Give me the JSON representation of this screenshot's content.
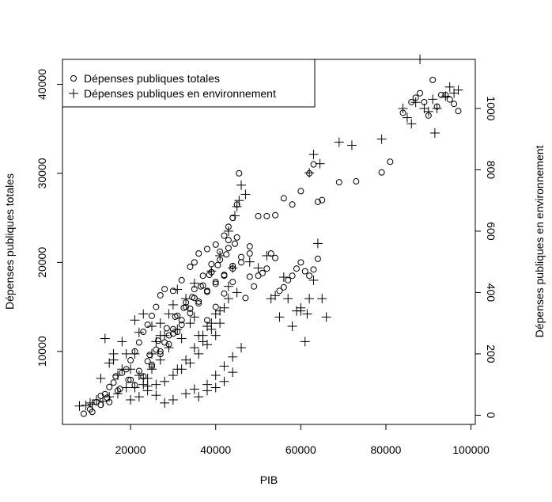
{
  "chart_data": {
    "type": "scatter",
    "title": "",
    "xlabel": "PIB",
    "ylabel": "Dépenses publiques totales",
    "y2label": "Dépenses publiques en environnement",
    "xlim": [
      4000,
      101000
    ],
    "ylim": [
      1800,
      42800
    ],
    "y2lim": [
      -30,
      1160
    ],
    "x_ticks": [
      20000,
      40000,
      60000,
      80000,
      100000
    ],
    "y_ticks": [
      10000,
      20000,
      30000,
      40000
    ],
    "y2_ticks": [
      0,
      200,
      400,
      600,
      800,
      1000
    ],
    "legend": {
      "position": "top-left",
      "entries": [
        {
          "label": "Dépenses publiques totales",
          "marker": "circle"
        },
        {
          "label": "Dépenses publiques en environnement",
          "marker": "plus"
        }
      ]
    },
    "series": [
      {
        "name": "Dépenses publiques totales",
        "marker": "circle",
        "axis": "left",
        "points": [
          [
            9000,
            3000
          ],
          [
            10500,
            3500
          ],
          [
            12000,
            4300
          ],
          [
            13000,
            5000
          ],
          [
            14000,
            5200
          ],
          [
            15000,
            6000
          ],
          [
            16000,
            6500
          ],
          [
            16500,
            7200
          ],
          [
            18000,
            7600
          ],
          [
            19000,
            8000
          ],
          [
            20000,
            9000
          ],
          [
            21000,
            10000
          ],
          [
            22000,
            11000
          ],
          [
            23000,
            12200
          ],
          [
            24000,
            13000
          ],
          [
            25000,
            14000
          ],
          [
            26000,
            15000
          ],
          [
            27000,
            16300
          ],
          [
            28000,
            17000
          ],
          [
            30000,
            16800
          ],
          [
            32000,
            18000
          ],
          [
            34000,
            19500
          ],
          [
            35000,
            20000
          ],
          [
            36000,
            21000
          ],
          [
            38000,
            21500
          ],
          [
            40000,
            22000
          ],
          [
            42000,
            23000
          ],
          [
            43000,
            24000
          ],
          [
            44000,
            25000
          ],
          [
            45000,
            26500
          ],
          [
            45500,
            30000
          ],
          [
            15000,
            4300
          ],
          [
            17000,
            5600
          ],
          [
            20000,
            6800
          ],
          [
            22000,
            7800
          ],
          [
            24000,
            8900
          ],
          [
            26000,
            10200
          ],
          [
            28000,
            11000
          ],
          [
            30000,
            12500
          ],
          [
            32000,
            13500
          ],
          [
            34000,
            14800
          ],
          [
            36000,
            15600
          ],
          [
            38000,
            16800
          ],
          [
            40000,
            17800
          ],
          [
            42000,
            18600
          ],
          [
            44000,
            19300
          ],
          [
            46000,
            20000
          ],
          [
            48000,
            21000
          ],
          [
            25000,
            8500
          ],
          [
            27000,
            10000
          ],
          [
            29000,
            11800
          ],
          [
            31000,
            14000
          ],
          [
            33000,
            15500
          ],
          [
            35000,
            17000
          ],
          [
            37000,
            18500
          ],
          [
            39000,
            19800
          ],
          [
            41000,
            21200
          ],
          [
            43000,
            22500
          ],
          [
            30000,
            12000
          ],
          [
            32000,
            13000
          ],
          [
            34000,
            14300
          ],
          [
            36000,
            15400
          ],
          [
            38000,
            16700
          ],
          [
            40000,
            17600
          ],
          [
            42000,
            18500
          ],
          [
            44000,
            19600
          ],
          [
            46000,
            20600
          ],
          [
            48000,
            21800
          ],
          [
            50000,
            25200
          ],
          [
            52000,
            25200
          ],
          [
            54000,
            25300
          ],
          [
            56000,
            27200
          ],
          [
            58000,
            26500
          ],
          [
            60000,
            28000
          ],
          [
            62000,
            30000
          ],
          [
            63000,
            31000
          ],
          [
            64000,
            26800
          ],
          [
            65000,
            27000
          ],
          [
            55000,
            16800
          ],
          [
            56000,
            17200
          ],
          [
            57000,
            18000
          ],
          [
            58000,
            18500
          ],
          [
            59000,
            19300
          ],
          [
            60000,
            20000
          ],
          [
            61000,
            19000
          ],
          [
            62000,
            18500
          ],
          [
            63000,
            19200
          ],
          [
            64000,
            20400
          ],
          [
            48000,
            18400
          ],
          [
            50000,
            18500
          ],
          [
            52000,
            19300
          ],
          [
            53000,
            21000
          ],
          [
            54000,
            20500
          ],
          [
            47000,
            16000
          ],
          [
            49000,
            17300
          ],
          [
            51000,
            18800
          ],
          [
            69000,
            29000
          ],
          [
            73000,
            29100
          ],
          [
            79000,
            30100
          ],
          [
            81000,
            31300
          ],
          [
            84000,
            36800
          ],
          [
            86000,
            38000
          ],
          [
            87000,
            38500
          ],
          [
            88000,
            39000
          ],
          [
            89000,
            38000
          ],
          [
            90000,
            36500
          ],
          [
            91000,
            40500
          ],
          [
            92000,
            37500
          ],
          [
            93000,
            38800
          ],
          [
            94000,
            38800
          ],
          [
            95000,
            38300
          ],
          [
            96000,
            37800
          ],
          [
            97000,
            37000
          ],
          [
            33000,
            15000
          ],
          [
            35000,
            16000
          ],
          [
            37000,
            17400
          ],
          [
            39000,
            18900
          ],
          [
            41000,
            20300
          ],
          [
            43000,
            21600
          ],
          [
            45000,
            22800
          ],
          [
            38000,
            13500
          ],
          [
            40000,
            15000
          ],
          [
            42000,
            16500
          ],
          [
            44000,
            17800
          ],
          [
            21000,
            6200
          ],
          [
            23000,
            7200
          ],
          [
            25000,
            8300
          ],
          [
            27000,
            9700
          ],
          [
            29000,
            10800
          ],
          [
            31000,
            12200
          ],
          [
            11000,
            3200
          ],
          [
            13000,
            4000
          ],
          [
            14500,
            4800
          ],
          [
            17500,
            5800
          ],
          [
            19500,
            6800
          ],
          [
            24500,
            9600
          ],
          [
            26500,
            11200
          ],
          [
            28500,
            12600
          ],
          [
            30500,
            13900
          ],
          [
            32500,
            14900
          ],
          [
            34500,
            16100
          ],
          [
            36500,
            17300
          ],
          [
            38500,
            18600
          ],
          [
            40500,
            19700
          ],
          [
            42500,
            20900
          ],
          [
            44500,
            22100
          ]
        ]
      },
      {
        "name": "Dépenses publiques en environnement",
        "marker": "plus",
        "axis": "right",
        "points": [
          [
            8000,
            30
          ],
          [
            9500,
            32
          ],
          [
            10500,
            40
          ],
          [
            12000,
            50
          ],
          [
            13000,
            120
          ],
          [
            14000,
            250
          ],
          [
            15000,
            170
          ],
          [
            16000,
            200
          ],
          [
            17000,
            130
          ],
          [
            18000,
            150
          ],
          [
            19000,
            200
          ],
          [
            20000,
            150
          ],
          [
            21000,
            200
          ],
          [
            22000,
            270
          ],
          [
            23000,
            100
          ],
          [
            24000,
            120
          ],
          [
            25000,
            200
          ],
          [
            26000,
            240
          ],
          [
            27000,
            300
          ],
          [
            28000,
            260
          ],
          [
            29000,
            330
          ],
          [
            30000,
            360
          ],
          [
            31000,
            280
          ],
          [
            32000,
            250
          ],
          [
            33000,
            380
          ],
          [
            34000,
            300
          ],
          [
            35000,
            320
          ],
          [
            36000,
            260
          ],
          [
            37000,
            240
          ],
          [
            38000,
            290
          ],
          [
            39000,
            280
          ],
          [
            40000,
            330
          ],
          [
            41000,
            300
          ],
          [
            42000,
            350
          ],
          [
            43000,
            420
          ],
          [
            44000,
            480
          ],
          [
            45000,
            680
          ],
          [
            46000,
            750
          ],
          [
            47000,
            720
          ],
          [
            48000,
            500
          ],
          [
            50000,
            480
          ],
          [
            52000,
            520
          ],
          [
            53000,
            380
          ],
          [
            54000,
            390
          ],
          [
            55000,
            320
          ],
          [
            56000,
            450
          ],
          [
            57000,
            380
          ],
          [
            58000,
            290
          ],
          [
            59000,
            340
          ],
          [
            60000,
            350
          ],
          [
            61000,
            240
          ],
          [
            62000,
            380
          ],
          [
            63000,
            440
          ],
          [
            64000,
            560
          ],
          [
            65000,
            380
          ],
          [
            66000,
            320
          ],
          [
            69000,
            890
          ],
          [
            72000,
            880
          ],
          [
            79000,
            900
          ],
          [
            84000,
            1000
          ],
          [
            86000,
            950
          ],
          [
            87000,
            1020
          ],
          [
            88000,
            1160
          ],
          [
            89000,
            1000
          ],
          [
            90000,
            990
          ],
          [
            91000,
            1030
          ],
          [
            92000,
            1000
          ],
          [
            94000,
            1040
          ],
          [
            95000,
            1070
          ],
          [
            96000,
            1050
          ],
          [
            97000,
            1060
          ],
          [
            85000,
            970
          ],
          [
            91500,
            920
          ],
          [
            20000,
            50
          ],
          [
            22000,
            60
          ],
          [
            24000,
            80
          ],
          [
            26000,
            100
          ],
          [
            28000,
            110
          ],
          [
            30000,
            130
          ],
          [
            32000,
            150
          ],
          [
            34000,
            170
          ],
          [
            36000,
            200
          ],
          [
            38000,
            230
          ],
          [
            40000,
            260
          ],
          [
            21000,
            90
          ],
          [
            23000,
            120
          ],
          [
            25000,
            150
          ],
          [
            27000,
            180
          ],
          [
            29000,
            220
          ],
          [
            31000,
            150
          ],
          [
            33000,
            180
          ],
          [
            35000,
            220
          ],
          [
            37000,
            260
          ],
          [
            39000,
            300
          ],
          [
            41000,
            340
          ],
          [
            43000,
            380
          ],
          [
            45000,
            400
          ],
          [
            38000,
            100
          ],
          [
            40000,
            130
          ],
          [
            42000,
            160
          ],
          [
            44000,
            190
          ],
          [
            46000,
            220
          ],
          [
            36000,
            60
          ],
          [
            38000,
            80
          ],
          [
            40000,
            90
          ],
          [
            42000,
            110
          ],
          [
            44000,
            140
          ],
          [
            33000,
            70
          ],
          [
            35000,
            85
          ],
          [
            30000,
            50
          ],
          [
            28000,
            40
          ],
          [
            26000,
            65
          ],
          [
            24000,
            95
          ],
          [
            22000,
            130
          ],
          [
            19000,
            90
          ],
          [
            17000,
            70
          ],
          [
            15000,
            60
          ],
          [
            13500,
            45
          ],
          [
            11000,
            35
          ],
          [
            18000,
            240
          ],
          [
            16000,
            180
          ],
          [
            21000,
            310
          ],
          [
            23000,
            330
          ],
          [
            25000,
            290
          ],
          [
            27000,
            260
          ],
          [
            31000,
            410
          ],
          [
            35000,
            430
          ],
          [
            39000,
            470
          ],
          [
            41000,
            520
          ],
          [
            43000,
            600
          ],
          [
            44500,
            650
          ],
          [
            45500,
            700
          ],
          [
            62000,
            790
          ],
          [
            63000,
            850
          ],
          [
            64500,
            820
          ],
          [
            60000,
            340
          ],
          [
            61500,
            330
          ]
        ]
      }
    ]
  }
}
